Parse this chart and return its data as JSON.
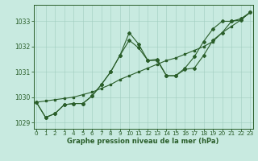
{
  "title": "Graphe pression niveau de la mer (hPa)",
  "bg_color": "#c8eae0",
  "grid_color": "#a0ccbe",
  "line_color": "#2a5e2a",
  "x_values": [
    0,
    1,
    2,
    3,
    4,
    5,
    6,
    7,
    8,
    9,
    10,
    11,
    12,
    13,
    14,
    15,
    16,
    17,
    18,
    19,
    20,
    21,
    22,
    23
  ],
  "wavy1": [
    1029.8,
    1029.2,
    1029.35,
    1029.7,
    1029.75,
    1029.75,
    1030.05,
    1030.5,
    1031.0,
    1031.65,
    1032.25,
    1031.95,
    1031.45,
    1031.45,
    1030.85,
    1030.85,
    1031.1,
    1031.15,
    1031.65,
    1032.25,
    1032.55,
    1033.0,
    1033.05,
    1033.35
  ],
  "wavy2": [
    1029.8,
    1029.2,
    1029.35,
    1029.7,
    1029.75,
    1029.75,
    1030.05,
    1030.5,
    1031.0,
    1031.65,
    1032.55,
    1032.1,
    1031.45,
    1031.5,
    1030.85,
    1030.85,
    1031.15,
    1031.6,
    1032.2,
    1032.7,
    1033.0,
    1033.0,
    1033.1,
    1033.35
  ],
  "straight": [
    1029.8,
    1029.85,
    1029.9,
    1029.95,
    1030.0,
    1030.1,
    1030.2,
    1030.35,
    1030.5,
    1030.7,
    1030.85,
    1031.0,
    1031.15,
    1031.3,
    1031.45,
    1031.55,
    1031.7,
    1031.85,
    1032.0,
    1032.2,
    1032.55,
    1032.8,
    1033.05,
    1033.35
  ],
  "ylim": [
    1028.75,
    1033.65
  ],
  "yticks": [
    1029,
    1030,
    1031,
    1032,
    1033
  ],
  "xticks": [
    0,
    1,
    2,
    3,
    4,
    5,
    6,
    7,
    8,
    9,
    10,
    11,
    12,
    13,
    14,
    15,
    16,
    17,
    18,
    19,
    20,
    21,
    22,
    23
  ]
}
